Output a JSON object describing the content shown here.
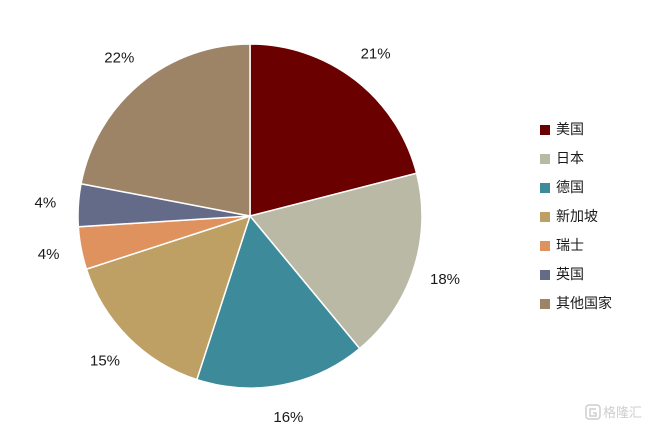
{
  "chart_data": {
    "type": "pie",
    "categories": [
      "美国",
      "日本",
      "德国",
      "新加坡",
      "瑞士",
      "英国",
      "其他国家"
    ],
    "values": [
      21,
      18,
      16,
      15,
      4,
      4,
      22
    ],
    "labels": [
      "21%",
      "18%",
      "16%",
      "15%",
      "4%",
      "4%",
      "22%"
    ],
    "colors": [
      "#6b0000",
      "#bab9a6",
      "#3d8a9b",
      "#bea064",
      "#e0925e",
      "#636b89",
      "#9e8467"
    ],
    "legend_position": "right"
  },
  "watermark": {
    "text": "格隆汇"
  }
}
